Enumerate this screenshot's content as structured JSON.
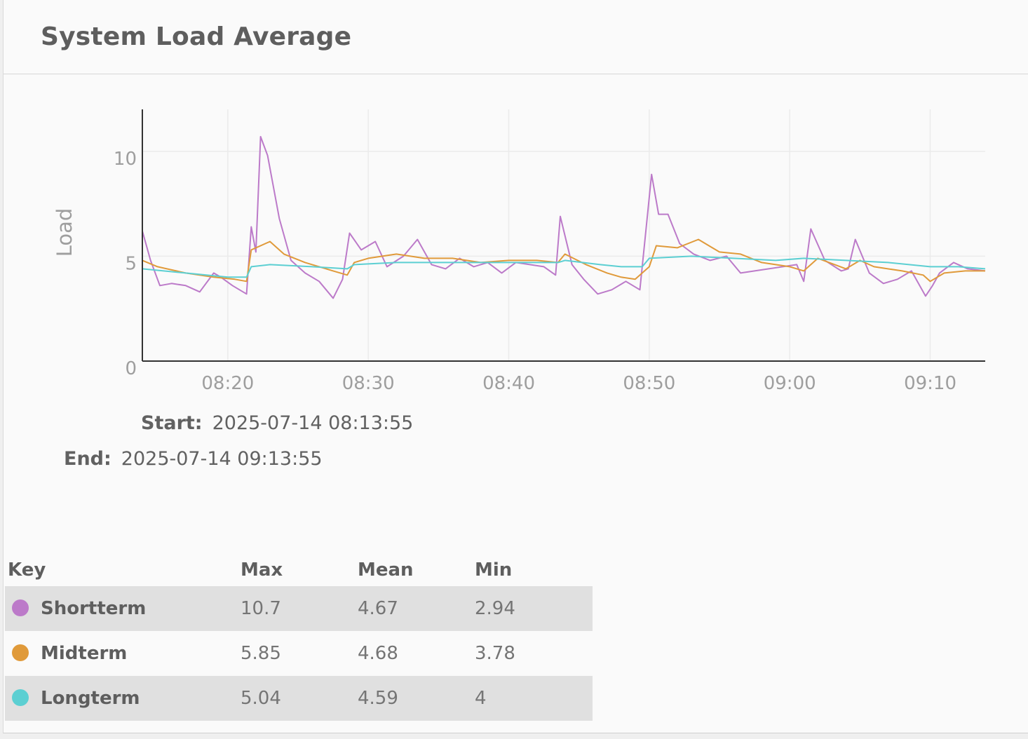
{
  "header": {
    "title": "System Load Average"
  },
  "chart_data": {
    "type": "line",
    "title": "",
    "xlabel": "",
    "ylabel": "Load",
    "ylim": [
      0,
      12
    ],
    "yticks": [
      "0",
      "5",
      "10"
    ],
    "xlim": [
      "08:13:55",
      "09:13:55"
    ],
    "xticks": [
      "08:20",
      "08:30",
      "08:40",
      "08:50",
      "09:00",
      "09:10"
    ],
    "grid": true,
    "series": [
      {
        "name": "Shortterm",
        "color": "#bc7ac9",
        "x": [
          "08:13:55",
          "08:14:30",
          "08:15:10",
          "08:16:00",
          "08:17:00",
          "08:18:00",
          "08:19:00",
          "08:19:30",
          "08:20:20",
          "08:21:20",
          "08:21:40",
          "08:22:00",
          "08:22:20",
          "08:22:50",
          "08:23:40",
          "08:24:30",
          "08:25:30",
          "08:26:30",
          "08:27:30",
          "08:28:10",
          "08:28:40",
          "08:29:30",
          "08:30:30",
          "08:31:20",
          "08:32:30",
          "08:33:30",
          "08:34:30",
          "08:35:30",
          "08:36:30",
          "08:37:30",
          "08:38:30",
          "08:39:30",
          "08:40:30",
          "08:41:30",
          "08:42:30",
          "08:43:20",
          "08:43:40",
          "08:44:30",
          "08:45:20",
          "08:46:20",
          "08:47:20",
          "08:48:20",
          "08:49:20",
          "08:49:40",
          "08:50:10",
          "08:50:40",
          "08:51:20",
          "08:52:10",
          "08:53:10",
          "08:54:20",
          "08:55:30",
          "08:56:30",
          "08:57:30",
          "08:58:30",
          "08:59:30",
          "09:00:30",
          "09:01:00",
          "09:01:30",
          "09:02:30",
          "09:03:40",
          "09:04:10",
          "09:04:40",
          "09:05:40",
          "09:06:40",
          "09:07:40",
          "09:08:40",
          "09:09:40",
          "09:10:10",
          "09:10:40",
          "09:11:40",
          "09:12:40",
          "09:13:55"
        ],
        "y": [
          6.2,
          4.8,
          3.6,
          3.7,
          3.6,
          3.3,
          4.2,
          4.0,
          3.6,
          3.2,
          6.4,
          5.2,
          10.7,
          9.8,
          6.8,
          4.8,
          4.2,
          3.8,
          3.0,
          3.9,
          6.1,
          5.3,
          5.7,
          4.5,
          5.0,
          5.8,
          4.6,
          4.4,
          4.9,
          4.5,
          4.7,
          4.2,
          4.7,
          4.6,
          4.5,
          4.1,
          6.9,
          4.6,
          3.9,
          3.2,
          3.4,
          3.8,
          3.4,
          5.6,
          8.9,
          7.0,
          7.0,
          5.6,
          5.1,
          4.8,
          5.0,
          4.2,
          4.3,
          4.4,
          4.5,
          4.6,
          3.8,
          6.3,
          4.8,
          4.3,
          4.4,
          5.8,
          4.2,
          3.7,
          3.9,
          4.3,
          3.1,
          3.6,
          4.2,
          4.7,
          4.4,
          4.3
        ]
      },
      {
        "name": "Midterm",
        "color": "#e09a3a",
        "x": [
          "08:13:55",
          "08:15:00",
          "08:17:00",
          "08:19:00",
          "08:20:30",
          "08:21:20",
          "08:21:40",
          "08:23:00",
          "08:24:00",
          "08:25:30",
          "08:27:30",
          "08:28:30",
          "08:29:00",
          "08:30:00",
          "08:32:00",
          "08:34:00",
          "08:36:00",
          "08:38:00",
          "08:40:00",
          "08:42:00",
          "08:43:30",
          "08:44:00",
          "08:45:30",
          "08:47:00",
          "08:48:00",
          "08:49:00",
          "08:50:00",
          "08:50:30",
          "08:52:00",
          "08:53:30",
          "08:55:00",
          "08:56:30",
          "08:58:00",
          "09:00:00",
          "09:01:00",
          "09:02:00",
          "09:04:00",
          "09:05:00",
          "09:06:00",
          "09:08:00",
          "09:09:30",
          "09:10:00",
          "09:11:00",
          "09:12:30",
          "09:13:55"
        ],
        "y": [
          4.8,
          4.5,
          4.2,
          4.0,
          3.9,
          3.8,
          5.3,
          5.7,
          5.1,
          4.7,
          4.3,
          4.1,
          4.7,
          4.9,
          5.1,
          4.9,
          4.9,
          4.7,
          4.8,
          4.8,
          4.7,
          5.1,
          4.6,
          4.2,
          4.0,
          3.9,
          4.5,
          5.5,
          5.4,
          5.8,
          5.2,
          5.1,
          4.7,
          4.5,
          4.3,
          4.9,
          4.4,
          4.8,
          4.5,
          4.3,
          4.1,
          3.8,
          4.2,
          4.3,
          4.3
        ]
      },
      {
        "name": "Longterm",
        "color": "#5ccfd2",
        "x": [
          "08:13:55",
          "08:17:00",
          "08:20:00",
          "08:21:20",
          "08:21:40",
          "08:23:00",
          "08:26:00",
          "08:28:30",
          "08:29:00",
          "08:32:00",
          "08:36:00",
          "08:40:00",
          "08:43:30",
          "08:44:00",
          "08:46:30",
          "08:48:00",
          "08:49:30",
          "08:50:00",
          "08:53:00",
          "08:56:00",
          "08:59:00",
          "09:01:00",
          "09:04:00",
          "09:07:00",
          "09:10:00",
          "09:12:00",
          "09:13:55"
        ],
        "y": [
          4.4,
          4.2,
          4.0,
          4.0,
          4.5,
          4.6,
          4.5,
          4.4,
          4.6,
          4.7,
          4.7,
          4.7,
          4.7,
          4.8,
          4.6,
          4.5,
          4.5,
          4.9,
          5.0,
          4.9,
          4.8,
          4.9,
          4.8,
          4.7,
          4.5,
          4.5,
          4.4
        ]
      }
    ]
  },
  "range": {
    "start_label": "Start:",
    "start_value": "2025-07-14 08:13:55",
    "end_label": "End:",
    "end_value": "2025-07-14 09:13:55"
  },
  "key_table": {
    "headers": [
      "Key",
      "Max",
      "Mean",
      "Min"
    ],
    "rows": [
      {
        "name": "Shortterm",
        "color": "#bc7ac9",
        "max": "10.7",
        "mean": "4.67",
        "min": "2.94"
      },
      {
        "name": "Midterm",
        "color": "#e09a3a",
        "max": "5.85",
        "mean": "4.68",
        "min": "3.78"
      },
      {
        "name": "Longterm",
        "color": "#5ccfd2",
        "max": "5.04",
        "mean": "4.59",
        "min": "4"
      }
    ]
  }
}
